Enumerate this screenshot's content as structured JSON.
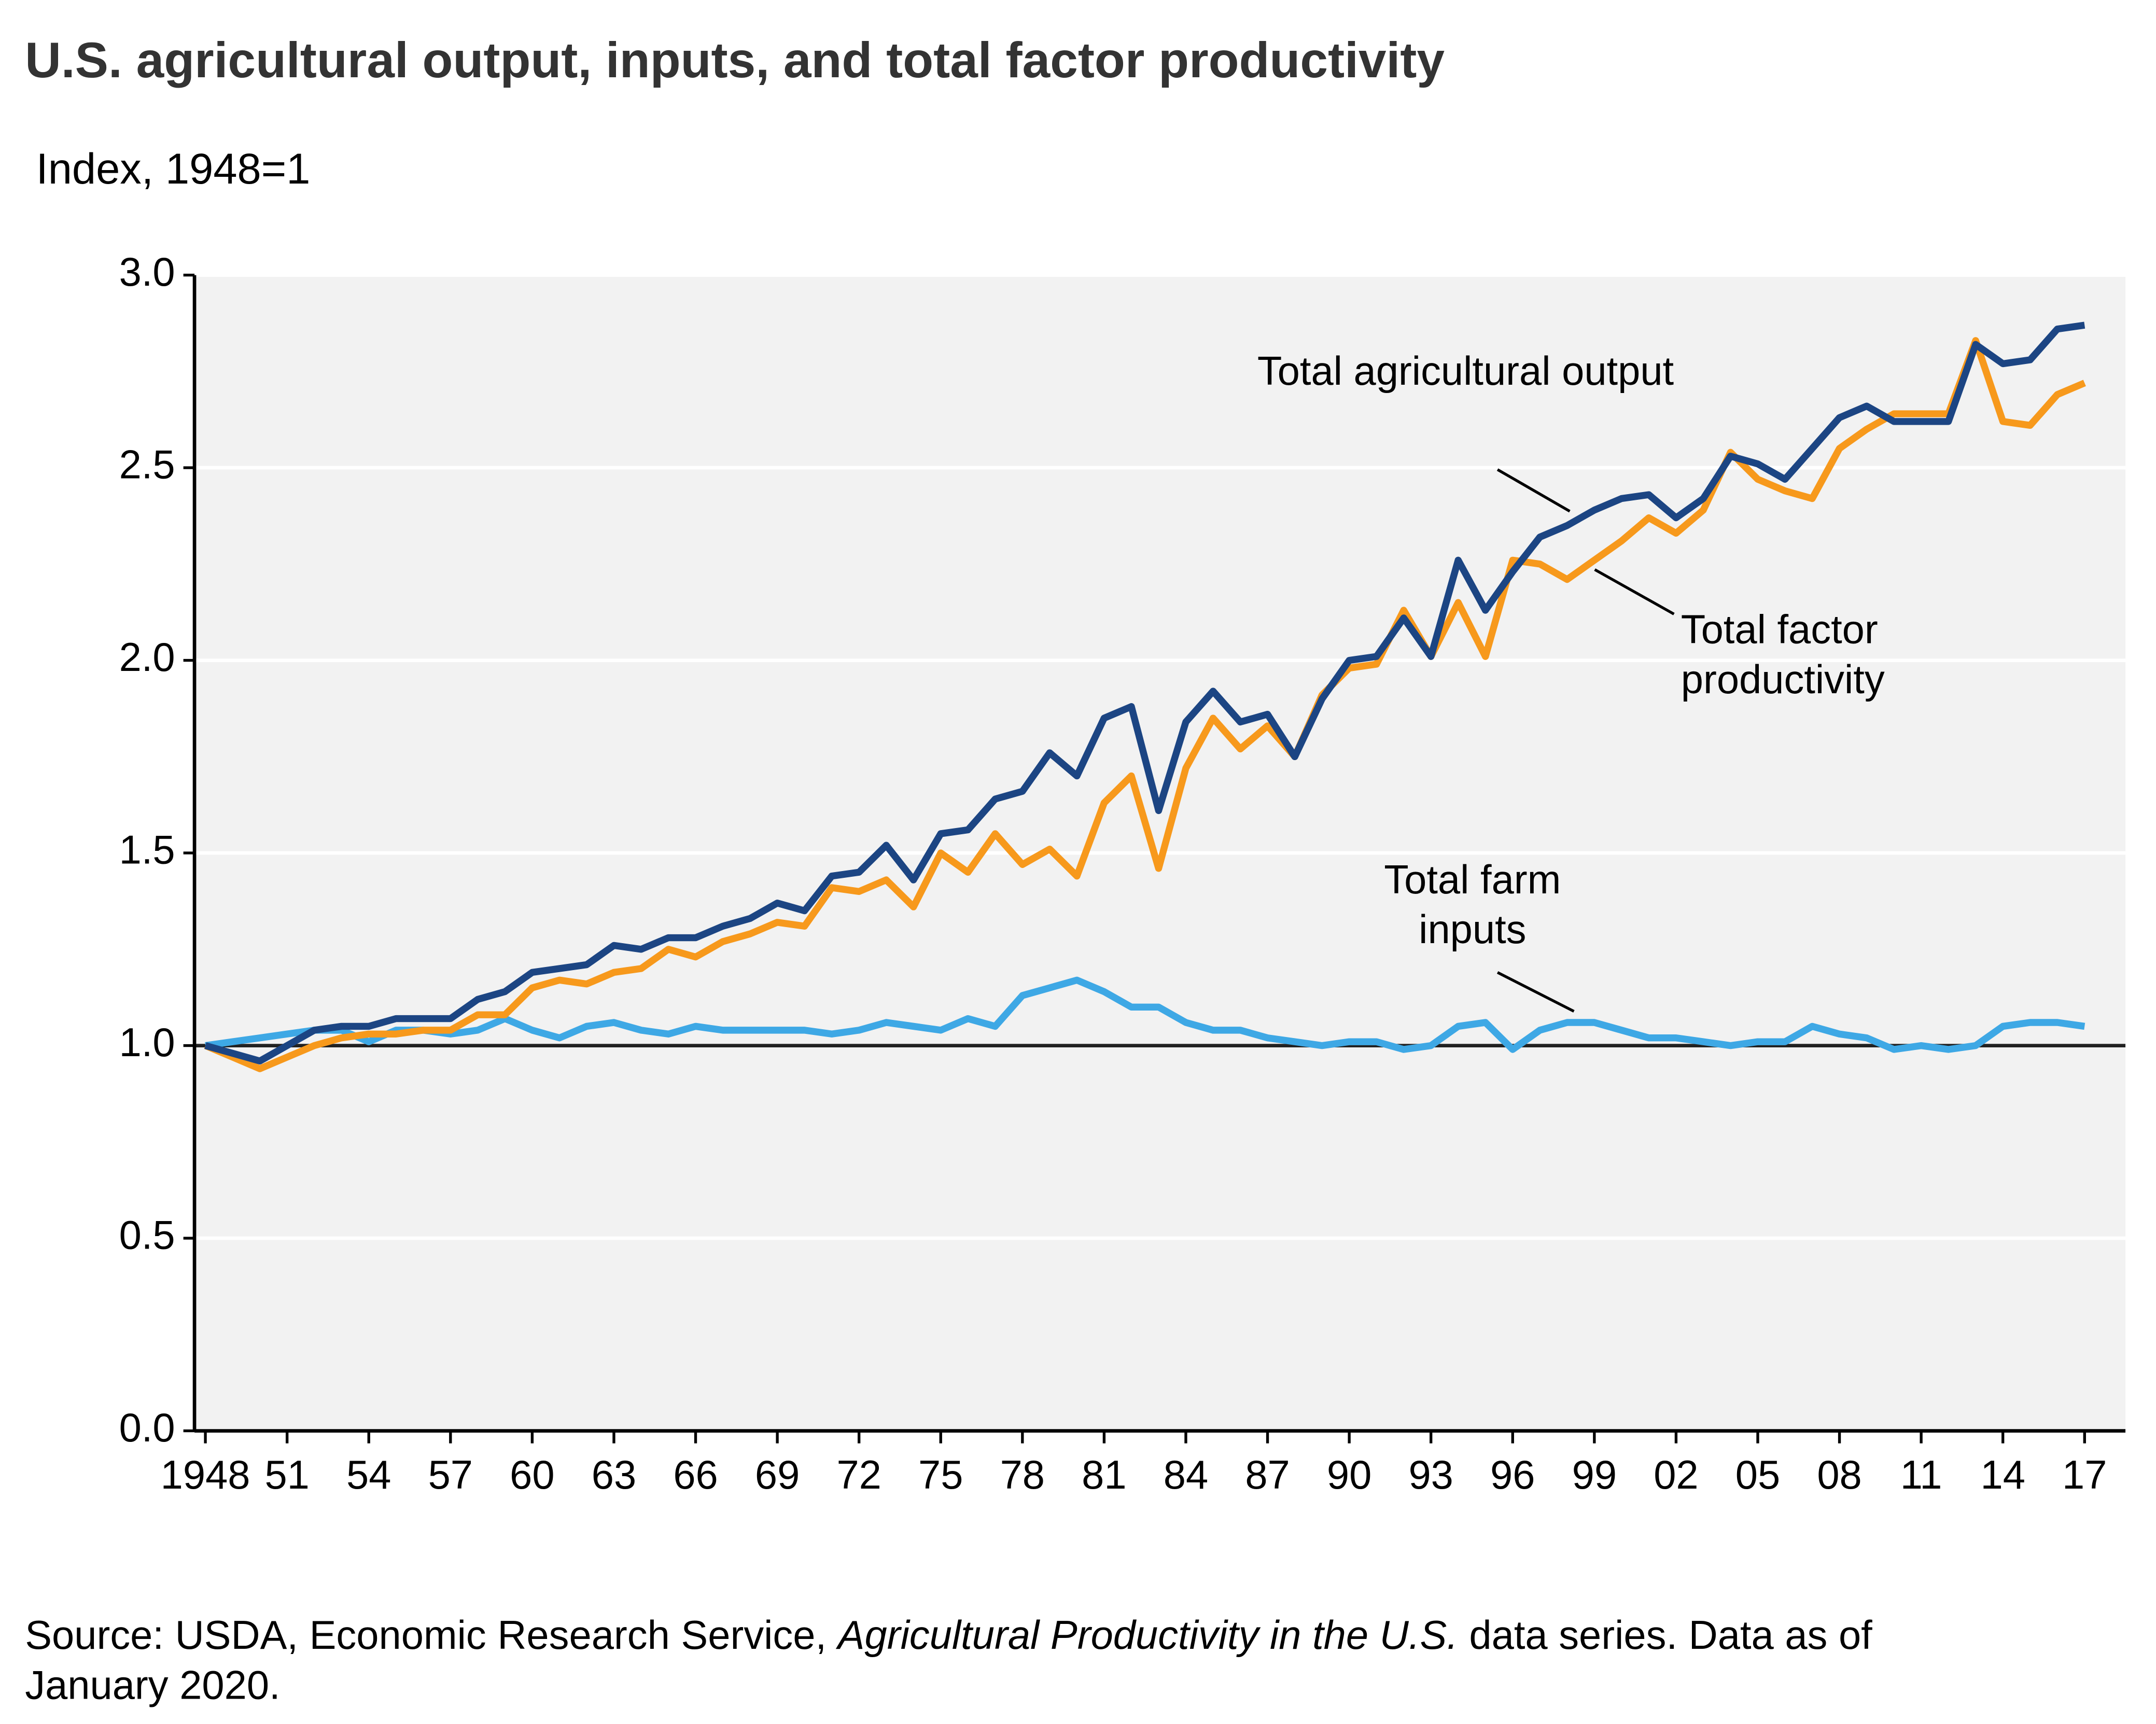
{
  "chart_data": {
    "type": "line",
    "title": "U.S. agricultural output, inputs, and total factor productivity",
    "subtitle": "Index, 1948=1",
    "source": {
      "before": "Source: USDA, Economic Research Service, ",
      "italic": "Agricultural Productivity in the U.S.",
      "after": " data series. Data as of January 2020."
    },
    "x": [
      1948,
      1949,
      1950,
      1951,
      1952,
      1953,
      1954,
      1955,
      1956,
      1957,
      1958,
      1959,
      1960,
      1961,
      1962,
      1963,
      1964,
      1965,
      1966,
      1967,
      1968,
      1969,
      1970,
      1971,
      1972,
      1973,
      1974,
      1975,
      1976,
      1977,
      1978,
      1979,
      1980,
      1981,
      1982,
      1983,
      1984,
      1985,
      1986,
      1987,
      1988,
      1989,
      1990,
      1991,
      1992,
      1993,
      1994,
      1995,
      1996,
      1997,
      1998,
      1999,
      2000,
      2001,
      2002,
      2003,
      2004,
      2005,
      2006,
      2007,
      2008,
      2009,
      2010,
      2011,
      2012,
      2013,
      2014,
      2015,
      2016,
      2017
    ],
    "series": [
      {
        "name": "Total farm inputs",
        "color": "#3ea8e5",
        "values": [
          1.0,
          1.01,
          1.02,
          1.03,
          1.04,
          1.04,
          1.01,
          1.04,
          1.04,
          1.03,
          1.04,
          1.07,
          1.04,
          1.02,
          1.05,
          1.06,
          1.04,
          1.03,
          1.05,
          1.04,
          1.04,
          1.04,
          1.04,
          1.03,
          1.04,
          1.06,
          1.05,
          1.04,
          1.07,
          1.05,
          1.13,
          1.15,
          1.17,
          1.14,
          1.1,
          1.1,
          1.06,
          1.04,
          1.04,
          1.02,
          1.01,
          1.0,
          1.01,
          1.01,
          0.99,
          1.0,
          1.05,
          1.06,
          0.99,
          1.04,
          1.06,
          1.06,
          1.04,
          1.02,
          1.02,
          1.01,
          1.0,
          1.01,
          1.01,
          1.05,
          1.03,
          1.02,
          0.99,
          1.0,
          0.99,
          1.0,
          1.05,
          1.06,
          1.06,
          1.05
        ]
      },
      {
        "name": "Total factor productivity",
        "color": "#f7991c",
        "values": [
          1.0,
          0.97,
          0.94,
          0.97,
          1.0,
          1.02,
          1.03,
          1.03,
          1.04,
          1.04,
          1.08,
          1.08,
          1.15,
          1.17,
          1.16,
          1.19,
          1.2,
          1.25,
          1.23,
          1.27,
          1.29,
          1.32,
          1.31,
          1.41,
          1.4,
          1.43,
          1.36,
          1.5,
          1.45,
          1.55,
          1.47,
          1.51,
          1.44,
          1.63,
          1.7,
          1.46,
          1.72,
          1.85,
          1.77,
          1.83,
          1.75,
          1.91,
          1.98,
          1.99,
          2.13,
          2.01,
          2.15,
          2.01,
          2.26,
          2.25,
          2.21,
          2.26,
          2.31,
          2.37,
          2.33,
          2.39,
          2.54,
          2.47,
          2.44,
          2.42,
          2.55,
          2.6,
          2.64,
          2.64,
          2.64,
          2.83,
          2.62,
          2.61,
          2.69,
          2.72
        ]
      },
      {
        "name": "Total agricultural output",
        "color": "#1c4583",
        "values": [
          1.0,
          0.98,
          0.96,
          1.0,
          1.04,
          1.05,
          1.05,
          1.07,
          1.07,
          1.07,
          1.12,
          1.14,
          1.19,
          1.2,
          1.21,
          1.26,
          1.25,
          1.28,
          1.28,
          1.31,
          1.33,
          1.37,
          1.35,
          1.44,
          1.45,
          1.52,
          1.43,
          1.55,
          1.56,
          1.64,
          1.66,
          1.76,
          1.7,
          1.85,
          1.88,
          1.61,
          1.84,
          1.92,
          1.84,
          1.86,
          1.75,
          1.9,
          2.0,
          2.01,
          2.11,
          2.01,
          2.26,
          2.13,
          2.23,
          2.32,
          2.35,
          2.39,
          2.42,
          2.43,
          2.37,
          2.42,
          2.53,
          2.51,
          2.47,
          2.55,
          2.63,
          2.66,
          2.62,
          2.62,
          2.62,
          2.82,
          2.77,
          2.78,
          2.86,
          2.87
        ]
      }
    ],
    "xlim": [
      1947.6,
      2018.5
    ],
    "xticks": [
      1948,
      {
        "value": 1951,
        "label": "51"
      },
      {
        "value": 1954,
        "label": "54"
      },
      {
        "value": 1957,
        "label": "57"
      },
      {
        "value": 1960,
        "label": "60"
      },
      {
        "value": 1963,
        "label": "63"
      },
      {
        "value": 1966,
        "label": "66"
      },
      {
        "value": 1969,
        "label": "69"
      },
      {
        "value": 1972,
        "label": "72"
      },
      {
        "value": 1975,
        "label": "75"
      },
      {
        "value": 1978,
        "label": "78"
      },
      {
        "value": 1981,
        "label": "81"
      },
      {
        "value": 1984,
        "label": "84"
      },
      {
        "value": 1987,
        "label": "87"
      },
      {
        "value": 1990,
        "label": "90"
      },
      {
        "value": 1993,
        "label": "93"
      },
      {
        "value": 1996,
        "label": "96"
      },
      {
        "value": 1999,
        "label": "99"
      },
      {
        "value": 2002,
        "label": "02"
      },
      {
        "value": 2005,
        "label": "05"
      },
      {
        "value": 2008,
        "label": "08"
      },
      {
        "value": 2011,
        "label": "11"
      },
      {
        "value": 2014,
        "label": "14"
      },
      {
        "value": 2017,
        "label": "17"
      }
    ],
    "ylim": [
      0,
      3
    ],
    "yticks": [
      {
        "value": 0,
        "label": "0.0"
      },
      {
        "value": 0.5,
        "label": "0.5"
      },
      {
        "value": 1,
        "label": "1.0"
      },
      {
        "value": 1.5,
        "label": "1.5"
      },
      {
        "value": 2,
        "label": "2.0"
      },
      {
        "value": 2.5,
        "label": "2.5"
      },
      {
        "value": 3,
        "label": "3.0"
      }
    ],
    "reference_line": 1,
    "grid": true
  }
}
